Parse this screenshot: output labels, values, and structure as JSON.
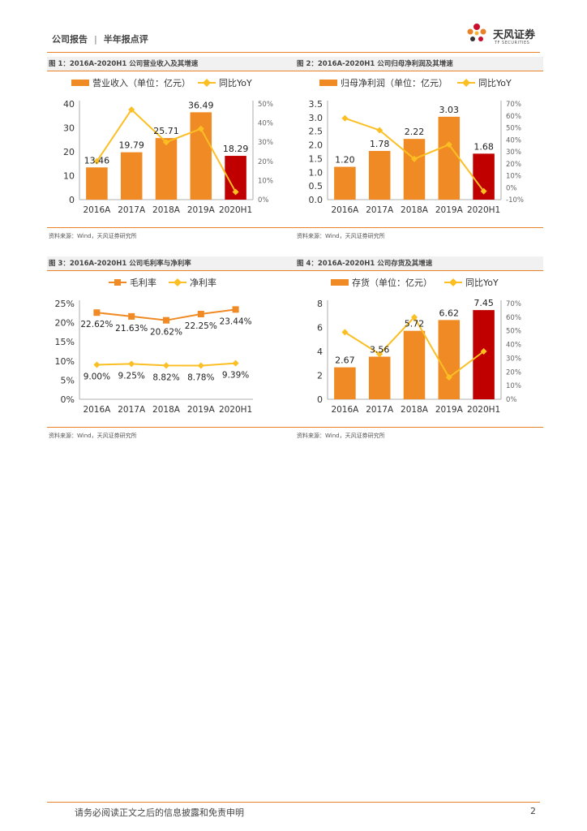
{
  "header": {
    "category": "公司报告",
    "separator": "|",
    "subcategory": "半年报点评"
  },
  "logo": {
    "name": "天风证券",
    "subtitle": "TF SECURITIES"
  },
  "colors": {
    "orange": "#f08a24",
    "red": "#c00000",
    "yellow": "#fbbf24",
    "accent": "#e8832a"
  },
  "chart_data": [
    {
      "type": "bar",
      "title": "图 1：2016A-2020H1 公司营业收入及其增速",
      "categories": [
        "2016A",
        "2017A",
        "2018A",
        "2019A",
        "2020H1"
      ],
      "series": [
        {
          "name": "营业收入（单位：亿元）",
          "kind": "bar",
          "axis": "left",
          "values": [
            13.46,
            19.79,
            25.71,
            36.49,
            18.29
          ]
        },
        {
          "name": "同比YoY",
          "kind": "line",
          "axis": "right",
          "values": [
            0.2,
            0.47,
            0.3,
            0.37,
            0.04
          ]
        }
      ],
      "value_labels": [
        "13.46",
        "19.79",
        "25.71",
        "36.49",
        "18.29"
      ],
      "y_left": {
        "ticks": [
          "0",
          "10",
          "20",
          "30",
          "40"
        ],
        "range": [
          0,
          40
        ]
      },
      "y_right": {
        "ticks": [
          "0%",
          "10%",
          "20%",
          "30%",
          "40%",
          "50%"
        ],
        "range": [
          0,
          0.5
        ]
      },
      "highlight_last": true,
      "source": "资料来源：Wind，天风证券研究所"
    },
    {
      "type": "bar",
      "title": "图 2：2016A-2020H1 公司归母净利润及其增速",
      "categories": [
        "2016A",
        "2017A",
        "2018A",
        "2019A",
        "2020H1"
      ],
      "series": [
        {
          "name": "归母净利润（单位：亿元）",
          "kind": "bar",
          "axis": "left",
          "values": [
            1.2,
            1.78,
            2.22,
            3.03,
            1.68
          ]
        },
        {
          "name": "同比YoY",
          "kind": "line",
          "axis": "right",
          "values": [
            0.58,
            0.48,
            0.24,
            0.36,
            -0.03
          ]
        }
      ],
      "value_labels": [
        "1.20",
        "1.78",
        "2.22",
        "3.03",
        "1.68"
      ],
      "y_left": {
        "ticks": [
          "0.0",
          "0.5",
          "1.0",
          "1.5",
          "2.0",
          "2.5",
          "3.0",
          "3.5"
        ],
        "range": [
          0,
          3.5
        ]
      },
      "y_right": {
        "ticks": [
          "-10%",
          "0%",
          "10%",
          "20%",
          "30%",
          "40%",
          "50%",
          "60%",
          "70%"
        ],
        "range": [
          -0.1,
          0.7
        ]
      },
      "highlight_last": true,
      "source": "资料来源：Wind，天风证券研究所"
    },
    {
      "type": "line",
      "title": "图 3：2016A-2020H1 公司毛利率与净利率",
      "categories": [
        "2016A",
        "2017A",
        "2018A",
        "2019A",
        "2020H1"
      ],
      "series": [
        {
          "name": "毛利率",
          "kind": "line",
          "marker": "square",
          "color": "#f08a24",
          "values": [
            22.62,
            21.63,
            20.62,
            22.25,
            23.44
          ],
          "labels": [
            "22.62%",
            "21.63%",
            "20.62%",
            "22.25%",
            "23.44%"
          ]
        },
        {
          "name": "净利率",
          "kind": "line",
          "marker": "diamond",
          "color": "#fbbf24",
          "values": [
            9.0,
            9.25,
            8.82,
            8.78,
            9.39
          ],
          "labels": [
            "9.00%",
            "9.25%",
            "8.82%",
            "8.78%",
            "9.39%"
          ]
        }
      ],
      "y_left": {
        "ticks": [
          "0%",
          "5%",
          "10%",
          "15%",
          "20%",
          "25%"
        ],
        "range": [
          0,
          25
        ]
      },
      "source": "资料来源：Wind，天风证券研究所"
    },
    {
      "type": "bar",
      "title": "图 4：2016A-2020H1 公司存货及其增速",
      "categories": [
        "2016A",
        "2017A",
        "2018A",
        "2019A",
        "2020H1"
      ],
      "series": [
        {
          "name": "存货（单位：亿元）",
          "kind": "bar",
          "axis": "left",
          "values": [
            2.67,
            3.56,
            5.72,
            6.62,
            7.45
          ]
        },
        {
          "name": "同比YoY",
          "kind": "line",
          "axis": "right",
          "values": [
            0.49,
            0.33,
            0.6,
            0.16,
            0.35
          ]
        }
      ],
      "value_labels": [
        "2.67",
        "3.56",
        "5.72",
        "6.62",
        "7.45"
      ],
      "y_left": {
        "ticks": [
          "0",
          "2",
          "4",
          "6",
          "8"
        ],
        "range": [
          0,
          8
        ]
      },
      "y_right": {
        "ticks": [
          "0%",
          "10%",
          "20%",
          "30%",
          "40%",
          "50%",
          "60%",
          "70%"
        ],
        "range": [
          0,
          0.7
        ]
      },
      "highlight_last": true,
      "source": "资料来源：Wind，天风证券研究所"
    }
  ],
  "footer": {
    "disclaimer": "请务必阅读正文之后的信息披露和免责申明",
    "page": "2"
  }
}
